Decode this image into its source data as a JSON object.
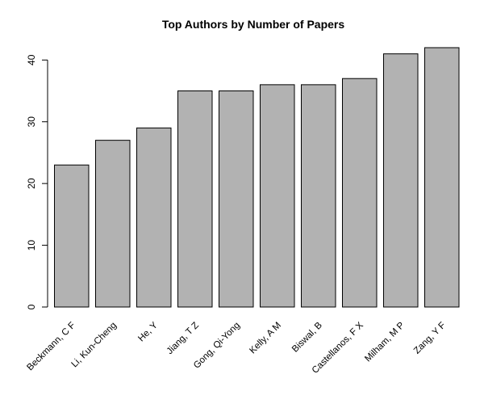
{
  "chart_data": {
    "type": "bar",
    "title": "Top Authors by Number of Papers",
    "xlabel": "",
    "ylabel": "",
    "categories": [
      "Beckmann, C F",
      "Li, Kun-Cheng",
      "He, Y",
      "Jiang, T Z",
      "Gong, Qi-Yong",
      "Kelly, A M",
      "Biswal, B",
      "Castellanos, F X",
      "Milham, M P",
      "Zang, Y F"
    ],
    "values": [
      23,
      27,
      29,
      35,
      35,
      36,
      36,
      37,
      41,
      42
    ],
    "ylim": [
      0,
      42
    ],
    "yticks": [
      0,
      10,
      20,
      30,
      40
    ],
    "grid": false,
    "legend": "none",
    "colors": {
      "bar_fill": "#b2b2b2",
      "bar_stroke": "#000000",
      "axis": "#000000",
      "text": "#000000"
    }
  }
}
